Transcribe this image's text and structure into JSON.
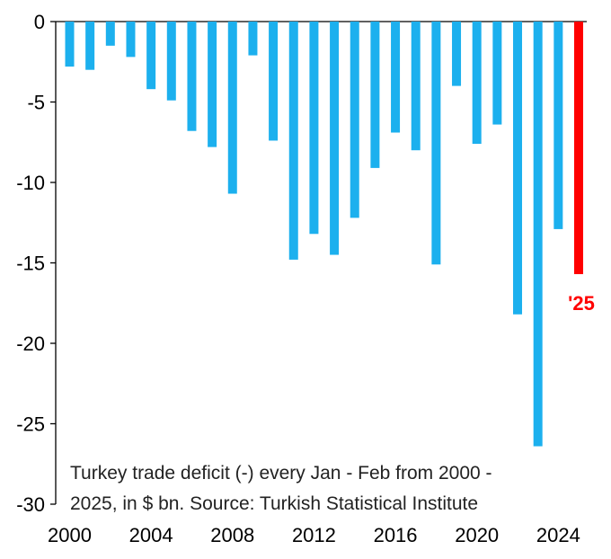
{
  "chart_data": {
    "type": "bar",
    "x": [
      2000,
      2001,
      2002,
      2003,
      2004,
      2005,
      2006,
      2007,
      2008,
      2009,
      2010,
      2011,
      2012,
      2013,
      2014,
      2015,
      2016,
      2017,
      2018,
      2019,
      2020,
      2021,
      2022,
      2023,
      2024,
      2025
    ],
    "values": [
      -2.8,
      -3.0,
      -1.5,
      -2.2,
      -4.2,
      -4.9,
      -6.8,
      -7.8,
      -10.7,
      -2.1,
      -7.4,
      -14.8,
      -13.2,
      -14.5,
      -12.2,
      -9.1,
      -6.9,
      -8.0,
      -15.1,
      -4.0,
      -7.6,
      -6.4,
      -18.2,
      -26.4,
      -12.9,
      -15.7
    ],
    "ylim": [
      -30,
      0
    ],
    "yticks": [
      0,
      -5,
      -10,
      -15,
      -20,
      -25,
      -30
    ],
    "ytick_labels": [
      "0",
      "-5",
      "-10",
      "-15",
      "-20",
      "-25",
      "-30"
    ],
    "xticks": [
      2000,
      2004,
      2008,
      2012,
      2016,
      2020,
      2024
    ],
    "xtick_labels": [
      "2000",
      "2004",
      "2008",
      "2012",
      "2016",
      "2020",
      "2024"
    ],
    "highlight_index": 25,
    "highlight_label": "'25",
    "caption": [
      "Turkey trade deficit (-) every Jan - Feb from 2000 -",
      "2025, in $ bn. Source: Turkish Statistical Institute"
    ],
    "colors": {
      "bar": "#1CB0EE",
      "highlight": "#FF0000",
      "axis": "#000000"
    }
  }
}
